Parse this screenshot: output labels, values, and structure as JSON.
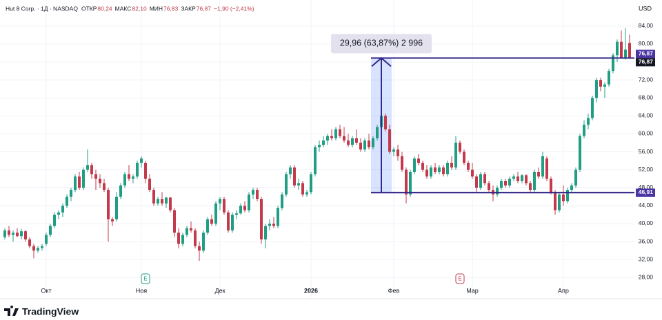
{
  "chart_data": {
    "type": "candlestick",
    "title": "Hut 8 Corp. · 1Д · NASDAQ",
    "ohlc_header": [
      {
        "label": "ОТКР",
        "value": "80,24"
      },
      {
        "label": "МАКС",
        "value": "82,10"
      },
      {
        "label": "МИН",
        "value": "76,83"
      },
      {
        "label": "ЗАКР",
        "value": "76,87"
      }
    ],
    "change": "−1,90 (−2,41%)",
    "currency": "USD",
    "up_color": "#1f9e84",
    "down_color": "#c23a4b",
    "grid": true,
    "ylim": [
      23.6,
      89.8
    ],
    "yticks": [
      {
        "value": 28,
        "label": "28,00"
      },
      {
        "value": 32,
        "label": "32,00"
      },
      {
        "value": 36,
        "label": "36,00"
      },
      {
        "value": 40,
        "label": "40,00"
      },
      {
        "value": 44,
        "label": "44,00"
      },
      {
        "value": 48,
        "label": "48,00"
      },
      {
        "value": 52,
        "label": "52,00"
      },
      {
        "value": 56,
        "label": "56,00"
      },
      {
        "value": 60,
        "label": "60,00"
      },
      {
        "value": 64,
        "label": "64,00"
      },
      {
        "value": 68,
        "label": "68,00"
      },
      {
        "value": 72,
        "label": "72,00"
      },
      {
        "value": 76,
        "label": "76,00"
      },
      {
        "value": 80,
        "label": "80,00"
      },
      {
        "value": 84,
        "label": "84,00"
      }
    ],
    "categories": [
      null,
      null,
      null,
      null,
      null,
      null,
      null,
      null,
      null,
      null,
      "Окт",
      null,
      null,
      null,
      null,
      null,
      null,
      null,
      null,
      null,
      null,
      null,
      null,
      null,
      null,
      null,
      null,
      null,
      null,
      null,
      null,
      null,
      null,
      "Ноя",
      null,
      null,
      null,
      null,
      null,
      null,
      null,
      null,
      null,
      null,
      null,
      null,
      null,
      null,
      null,
      null,
      null,
      null,
      "Дек",
      null,
      null,
      null,
      null,
      null,
      null,
      null,
      null,
      null,
      null,
      null,
      null,
      null,
      null,
      null,
      null,
      null,
      null,
      null,
      null,
      null,
      "2026",
      null,
      null,
      null,
      null,
      null,
      null,
      null,
      null,
      null,
      null,
      null,
      null,
      null,
      null,
      null,
      null,
      null,
      null,
      null,
      "Фев",
      null,
      null,
      null,
      null,
      null,
      null,
      null,
      null,
      null,
      null,
      null,
      null,
      null,
      null,
      null,
      null,
      null,
      null,
      "Мар",
      null,
      null,
      null,
      null,
      null,
      null,
      null,
      null,
      null,
      null,
      null,
      null,
      null,
      null,
      null,
      null,
      null,
      null,
      null,
      null,
      null,
      "Апр",
      null,
      null,
      null,
      null,
      null,
      null,
      null,
      null,
      null,
      null,
      null,
      null,
      null,
      null,
      null,
      null
    ],
    "values": [
      [
        37,
        39,
        36.5,
        38.5
      ],
      [
        38.5,
        39.5,
        37,
        37.5
      ],
      [
        37.5,
        38.5,
        36,
        38
      ],
      [
        38,
        39,
        37,
        37.2
      ],
      [
        37.2,
        38.8,
        36.5,
        38.3
      ],
      [
        38.3,
        38.6,
        36,
        36.5
      ],
      [
        36.5,
        37,
        34.5,
        35
      ],
      [
        35,
        35.5,
        32.3,
        34
      ],
      [
        34,
        35,
        33.5,
        34.6
      ],
      [
        34.6,
        35.5,
        34,
        35
      ],
      [
        35.5,
        38,
        35,
        37.5
      ],
      [
        37.5,
        40,
        37,
        39.5
      ],
      [
        39.5,
        42.5,
        39,
        42
      ],
      [
        42,
        43,
        41,
        42.5
      ],
      [
        42.5,
        44.5,
        41.5,
        44
      ],
      [
        44,
        46.5,
        43.5,
        46
      ],
      [
        46,
        48,
        45,
        47.5
      ],
      [
        47.5,
        51,
        47,
        50.5
      ],
      [
        50.5,
        51.5,
        47.5,
        48
      ],
      [
        48,
        52.5,
        47.5,
        52
      ],
      [
        52,
        56.5,
        51.5,
        53
      ],
      [
        53,
        53.5,
        50,
        51
      ],
      [
        51,
        52,
        47.5,
        50
      ],
      [
        50,
        51,
        48,
        49
      ],
      [
        49,
        50,
        47,
        47.5
      ],
      [
        47.5,
        48,
        36,
        41
      ],
      [
        41,
        41.5,
        39.5,
        40.5
      ],
      [
        41,
        47,
        40.5,
        46
      ],
      [
        46,
        49,
        45.5,
        48.5
      ],
      [
        48.5,
        51.5,
        48,
        51
      ],
      [
        51,
        53,
        49.5,
        50
      ],
      [
        50,
        51,
        49,
        50.5
      ],
      [
        50.5,
        54,
        50,
        53.5
      ],
      [
        53.5,
        55,
        52.5,
        54.5
      ],
      [
        53.5,
        54,
        49,
        50
      ],
      [
        50,
        51,
        47,
        47.5
      ],
      [
        47.5,
        48,
        44,
        44.5
      ],
      [
        44.5,
        46,
        44,
        45.5
      ],
      [
        45.5,
        47,
        44,
        44.5
      ],
      [
        44.5,
        46,
        43.5,
        45.8
      ],
      [
        45.8,
        46,
        42.5,
        43
      ],
      [
        43,
        43.5,
        37,
        38
      ],
      [
        38,
        39,
        34.5,
        35.5
      ],
      [
        35.5,
        38,
        35,
        37.5
      ],
      [
        37.5,
        39.5,
        37,
        39
      ],
      [
        39,
        40.5,
        38,
        38.5
      ],
      [
        38.5,
        39,
        34.5,
        35
      ],
      [
        35,
        36,
        31.7,
        34
      ],
      [
        34,
        38.5,
        33.5,
        38
      ],
      [
        38,
        41.5,
        37.5,
        41
      ],
      [
        41,
        42,
        39.5,
        40
      ],
      [
        40,
        45,
        39.5,
        44.5
      ],
      [
        44.5,
        46,
        43,
        45.5
      ],
      [
        45.5,
        46,
        42,
        42.5
      ],
      [
        42.5,
        43,
        38,
        38.5
      ],
      [
        38.5,
        42.5,
        38,
        42
      ],
      [
        42,
        43,
        41,
        42.3
      ],
      [
        42.3,
        44.5,
        42,
        44
      ],
      [
        44,
        45,
        42.5,
        43
      ],
      [
        43,
        47,
        42.5,
        46.5
      ],
      [
        46.5,
        48,
        45.5,
        47.5
      ],
      [
        47.5,
        48,
        45,
        45.5
      ],
      [
        45.5,
        46,
        35.5,
        36.5
      ],
      [
        36.5,
        40,
        34.5,
        39.5
      ],
      [
        39.5,
        41,
        38.5,
        40
      ],
      [
        40,
        41.5,
        39,
        39.5
      ],
      [
        39.5,
        44,
        39,
        43.5
      ],
      [
        43.5,
        47,
        43,
        46.5
      ],
      [
        46.5,
        51.5,
        46,
        51
      ],
      [
        51,
        53,
        50,
        52.5
      ],
      [
        52.5,
        53,
        48,
        48.5
      ],
      [
        48.5,
        50,
        47.5,
        49
      ],
      [
        49,
        49.5,
        46,
        46.5
      ],
      [
        46.5,
        47.5,
        46,
        47
      ],
      [
        47,
        51.5,
        46.5,
        51
      ],
      [
        51,
        57.5,
        50.5,
        57
      ],
      [
        57,
        58.5,
        56,
        57.5
      ],
      [
        57.5,
        59.5,
        57,
        58.5
      ],
      [
        58.5,
        60,
        57.5,
        59.5
      ],
      [
        59.5,
        61,
        58.5,
        59
      ],
      [
        59,
        61.5,
        58.5,
        61
      ],
      [
        61,
        62,
        59,
        59.5
      ],
      [
        59.5,
        61.5,
        58,
        58.5
      ],
      [
        58.5,
        60,
        57,
        57.5
      ],
      [
        57.5,
        59.5,
        57,
        59
      ],
      [
        59,
        61,
        57.5,
        58
      ],
      [
        58,
        59,
        56,
        56.5
      ],
      [
        56.5,
        59,
        56,
        58.5
      ],
      [
        58.5,
        60,
        56.5,
        57
      ],
      [
        57,
        59.5,
        56.5,
        59
      ],
      [
        59,
        62,
        58.5,
        61.5
      ],
      [
        61.5,
        64.6,
        61,
        64
      ],
      [
        64,
        64.5,
        60.5,
        61
      ],
      [
        61,
        62,
        55.5,
        56
      ],
      [
        56,
        57,
        55,
        56.5
      ],
      [
        56.5,
        57.5,
        54,
        55
      ],
      [
        55,
        56,
        51.5,
        52
      ],
      [
        52,
        52.5,
        44.5,
        46.5
      ],
      [
        46.5,
        52,
        46,
        51.5
      ],
      [
        51.5,
        55,
        51,
        54.5
      ],
      [
        54.5,
        55.5,
        53,
        53.5
      ],
      [
        53.5,
        54,
        51.5,
        52
      ],
      [
        52,
        53,
        50,
        50.5
      ],
      [
        50.5,
        53,
        50,
        52.5
      ],
      [
        52.5,
        53.5,
        51,
        51.5
      ],
      [
        51.5,
        53,
        51,
        52.5
      ],
      [
        52.5,
        53,
        50.5,
        51
      ],
      [
        51,
        54,
        50.5,
        53.5
      ],
      [
        53.5,
        55,
        52,
        52.5
      ],
      [
        52.5,
        59.5,
        52,
        58
      ],
      [
        58,
        58.5,
        55.5,
        56
      ],
      [
        56,
        56.5,
        53,
        53.5
      ],
      [
        53.5,
        54,
        51.5,
        52
      ],
      [
        52,
        53.5,
        50,
        50.5
      ],
      [
        50.5,
        51,
        47,
        48
      ],
      [
        48,
        51.5,
        47.5,
        51
      ],
      [
        51,
        51.5,
        48.5,
        49
      ],
      [
        49,
        49.5,
        47,
        47.5
      ],
      [
        47.5,
        48.5,
        45,
        46.5
      ],
      [
        46.5,
        48.5,
        46,
        48
      ],
      [
        48,
        50,
        47.5,
        49.5
      ],
      [
        49.5,
        50,
        48,
        48.5
      ],
      [
        48.5,
        50.5,
        48,
        50
      ],
      [
        50,
        51,
        49.5,
        50.5
      ],
      [
        50.5,
        51.5,
        49,
        49.5
      ],
      [
        49.5,
        51,
        49,
        50.8
      ],
      [
        50.8,
        51,
        48.5,
        49
      ],
      [
        49,
        49.5,
        47,
        47.5
      ],
      [
        47.5,
        52,
        47,
        51.5
      ],
      [
        51.5,
        52.5,
        50,
        50.5
      ],
      [
        50.5,
        56,
        50,
        55
      ],
      [
        54.5,
        55,
        49.5,
        50
      ],
      [
        50,
        50.5,
        46.5,
        47
      ],
      [
        47,
        47.5,
        42,
        43
      ],
      [
        43,
        47,
        42.5,
        46.5
      ],
      [
        46.5,
        48.5,
        44,
        45
      ],
      [
        45,
        48,
        44.5,
        47.5
      ],
      [
        47.5,
        49,
        47,
        48.5
      ],
      [
        48.5,
        52.5,
        48,
        52
      ],
      [
        52,
        60,
        51.5,
        59.5
      ],
      [
        59.5,
        63,
        59,
        62
      ],
      [
        62,
        64.5,
        61,
        63.5
      ],
      [
        63.5,
        68.5,
        63,
        68
      ],
      [
        68,
        72.5,
        67,
        72
      ],
      [
        72,
        72.5,
        69.5,
        70.5
      ],
      [
        70.5,
        71.5,
        68,
        71
      ],
      [
        71,
        74.5,
        70.5,
        74
      ],
      [
        74,
        78,
        73.5,
        77.5
      ],
      [
        77.5,
        81,
        76,
        80.5
      ],
      [
        80.5,
        83,
        77,
        77
      ],
      [
        77,
        83.5,
        76.5,
        78.77
      ],
      [
        80.24,
        82.1,
        76.83,
        76.87
      ]
    ],
    "earnings_markers": [
      {
        "index": 34,
        "label": "E"
      },
      {
        "index": 110,
        "label": "E"
      }
    ],
    "measure": {
      "from": 46.91,
      "to": 76.87,
      "from_label": "46,91",
      "to_label": "76,87",
      "label": "29,96 (63,87%) 2 996",
      "start_index": 89,
      "end_index": 93
    },
    "last_price": {
      "value": 76.87,
      "label": "76,87"
    },
    "brand": "TradingView"
  }
}
